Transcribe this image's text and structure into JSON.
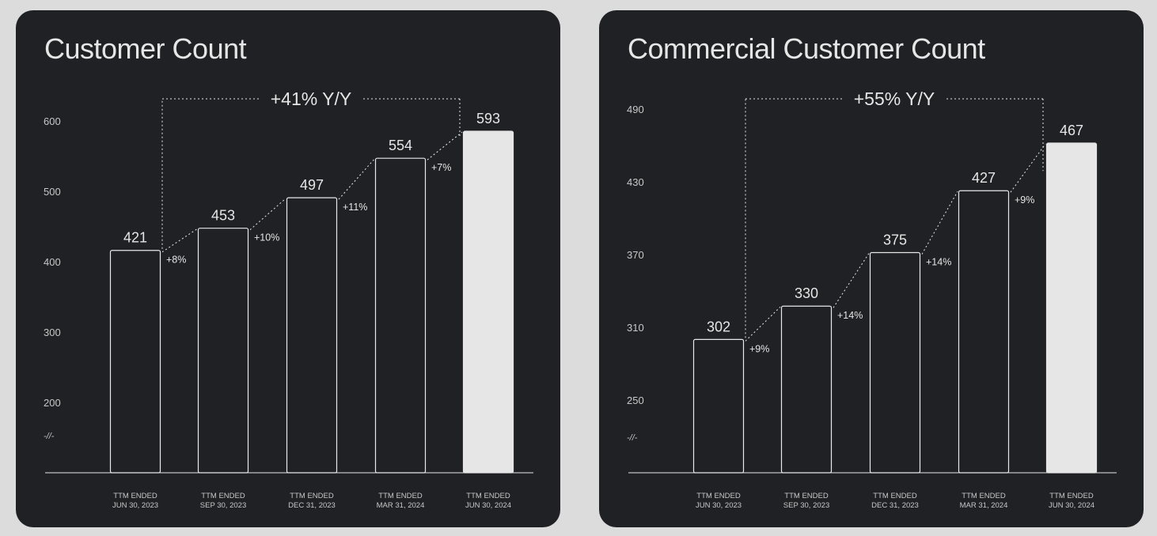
{
  "colors": {
    "page_background": "#dcdcdc",
    "panel_background": "#1f2124",
    "outline": "#e8e8e8",
    "highlight_bar": "#e6e6e6",
    "text": "#e6e6e6",
    "muted_text": "#c8c8c8"
  },
  "chart_data": [
    {
      "type": "bar",
      "title": "Customer Count",
      "categories": [
        [
          "TTM ENDED",
          "JUN 30, 2023"
        ],
        [
          "TTM ENDED",
          "SEP 30, 2023"
        ],
        [
          "TTM ENDED",
          "DEC 31, 2023"
        ],
        [
          "TTM ENDED",
          "MAR 31, 2024"
        ],
        [
          "TTM ENDED",
          "JUN 30, 2024"
        ]
      ],
      "values": [
        421,
        453,
        497,
        554,
        593
      ],
      "value_labels": [
        "421",
        "453",
        "497",
        "554",
        "593"
      ],
      "growth_labels": [
        "+8%",
        "+10%",
        "+11%",
        "+7%"
      ],
      "yoy_label": "+41% Y/Y",
      "y_ticks": [
        200,
        300,
        400,
        500,
        600
      ],
      "axis_break": "-//-",
      "ylim": [
        200,
        600
      ],
      "highlight_last": true,
      "grid": false
    },
    {
      "type": "bar",
      "title": "Commercial Customer Count",
      "categories": [
        [
          "TTM ENDED",
          "JUN 30, 2023"
        ],
        [
          "TTM ENDED",
          "SEP 30, 2023"
        ],
        [
          "TTM ENDED",
          "DEC 31, 2023"
        ],
        [
          "TTM ENDED",
          "MAR 31, 2024"
        ],
        [
          "TTM ENDED",
          "JUN 30, 2024"
        ]
      ],
      "values": [
        302,
        330,
        375,
        427,
        467
      ],
      "value_labels": [
        "302",
        "330",
        "375",
        "427",
        "467"
      ],
      "growth_labels": [
        "+9%",
        "+14%",
        "+14%",
        "+9%"
      ],
      "yoy_label": "+55% Y/Y",
      "y_ticks": [
        250,
        310,
        370,
        430,
        490
      ],
      "axis_break": "-//-",
      "ylim": [
        250,
        490
      ],
      "highlight_last": true,
      "grid": false
    }
  ]
}
